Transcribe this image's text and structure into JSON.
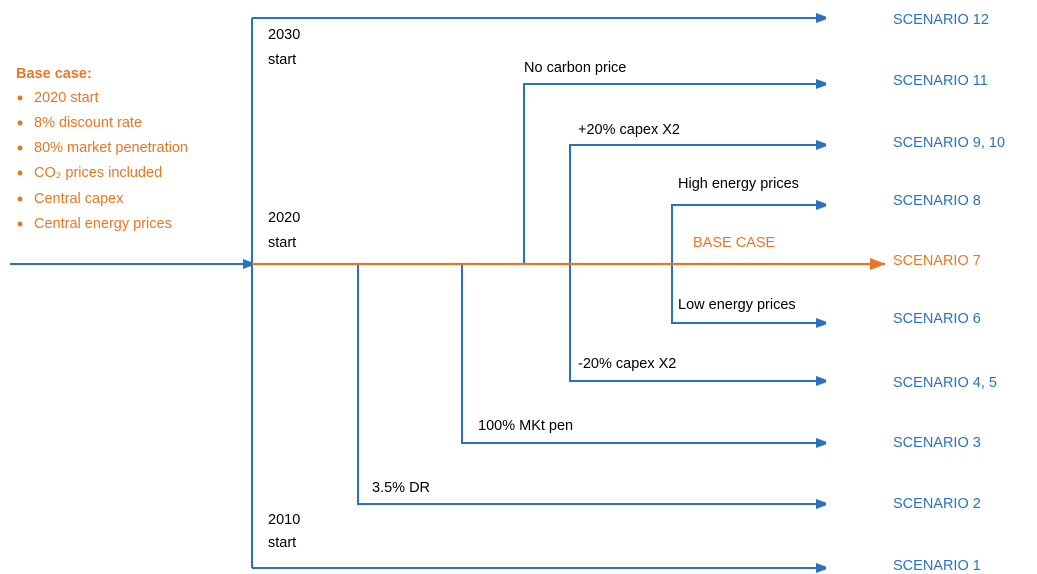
{
  "base_case": {
    "title": "Base case:",
    "items": [
      "2020 start",
      "8% discount rate",
      "80% market penetration",
      "CO₂ prices included",
      "Central capex",
      "Central energy prices"
    ]
  },
  "starts": {
    "top": [
      "2030",
      "start"
    ],
    "middle": [
      "2020",
      "start"
    ],
    "bottom": [
      "2010",
      "start"
    ]
  },
  "branches": {
    "dr": "3.5% DR",
    "mkt": "100% MKt pen",
    "carbon": "No carbon price",
    "capex_up": "+20% capex X2",
    "capex_down": "-20% capex X2",
    "energy_high": "High energy prices",
    "energy_low": "Low energy prices",
    "base": "BASE CASE"
  },
  "scenarios": [
    "SCENARIO 12",
    "SCENARIO 11",
    "SCENARIO 9, 10",
    "SCENARIO 8",
    "SCENARIO 7",
    "SCENARIO 6",
    "SCENARIO 4, 5",
    "SCENARIO 3",
    "SCENARIO 2",
    "SCENARIO 1"
  ]
}
